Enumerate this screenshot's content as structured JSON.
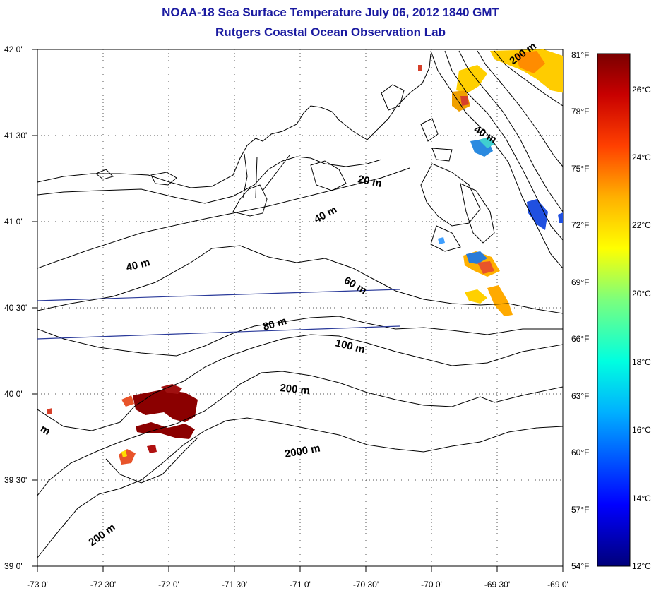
{
  "title": "NOAA-18 Sea Surface Temperature July 06, 2012 1840 GMT",
  "subtitle": "Rutgers Coastal Ocean Observation Lab",
  "axes": {
    "lat_ticks": [
      "42 0'",
      "41 30'",
      "41 0'",
      "40 30'",
      "40 0'",
      "39 30'",
      "39 0'"
    ],
    "lon_ticks": [
      "-73 0'",
      "-72 30'",
      "-72 0'",
      "-71 30'",
      "-71 0'",
      "-70 30'",
      "-70 0'",
      "-69 30'",
      "-69 0'"
    ],
    "lat_range": [
      39.0,
      42.0
    ],
    "lon_range": [
      -73.0,
      -69.0
    ]
  },
  "contour_labels": [
    {
      "text": "20 m"
    },
    {
      "text": "40 m"
    },
    {
      "text": "40 m"
    },
    {
      "text": "40 m"
    },
    {
      "text": "60 m"
    },
    {
      "text": "80 m"
    },
    {
      "text": "100 m"
    },
    {
      "text": "200 m"
    },
    {
      "text": "200 m"
    },
    {
      "text": "200 m"
    },
    {
      "text": "2000 m"
    },
    {
      "text": "m"
    }
  ],
  "colorbar": {
    "fahrenheit_labels": [
      "81°F",
      "78°F",
      "75°F",
      "72°F",
      "69°F",
      "66°F",
      "63°F",
      "60°F",
      "57°F",
      "54°F"
    ],
    "celsius_labels": [
      "26°C",
      "24°C",
      "22°C",
      "20°C",
      "18°C",
      "16°C",
      "14°C",
      "12°C"
    ],
    "range_c": [
      12,
      27.2
    ]
  },
  "colors": {
    "title": "#1a1aa0",
    "shipping_lanes": "#2a3a9a",
    "hot_patch": "#8b0000",
    "warm_patch": "#d6402a",
    "cool_patch": "#2a7bd8"
  }
}
